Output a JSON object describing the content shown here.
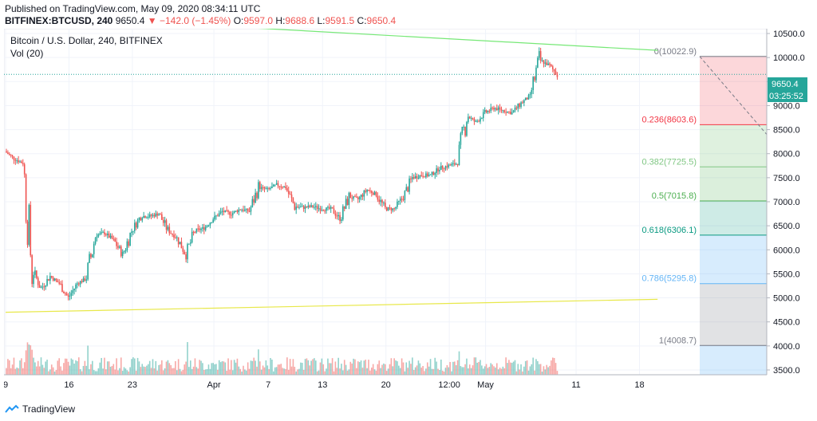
{
  "header": {
    "published": "Published on TradingView.com, May 09, 2020 08:34:11 UTC",
    "symbol": "BITFINEX:BTCUSD, 240",
    "last": "9650.4",
    "change": "▼ −142.0 (−1.45%)",
    "o_label": "O:",
    "o_value": "9597.0",
    "h_label": "H:",
    "h_value": "9688.6",
    "l_label": "L:",
    "l_value": "9591.5",
    "c_label": "C:",
    "c_value": "9650.4"
  },
  "pane": {
    "title": "Bitcoin / U.S. Dollar, 240, BITFINEX",
    "volume_label": "Vol (20)"
  },
  "price_tag": {
    "value": "9650.4",
    "countdown": "03:25:52"
  },
  "footer": {
    "brand": "TradingView"
  },
  "colors": {
    "up": "#26a69a",
    "down": "#ef5350",
    "green_trend": "#76e876",
    "yellow_trend": "#e8e84a",
    "dotted_price": "#26a69a"
  },
  "chart_data": {
    "type": "candlestick",
    "y_axis": {
      "min": 3400,
      "max": 10600,
      "ticks": [
        3500,
        4000,
        4500,
        5000,
        5500,
        6000,
        6500,
        7000,
        7500,
        8000,
        8500,
        9000,
        9500,
        10000,
        10500
      ]
    },
    "x_axis": {
      "ticks": [
        "9",
        "16",
        "23",
        "Apr",
        "7",
        "13",
        "20",
        "12:00",
        "May",
        "11",
        "18"
      ]
    },
    "last_price": 9650.4,
    "trendlines": [
      {
        "color": "green",
        "from": [
          "Mar 9",
          10900
        ],
        "to": [
          "May 20",
          10150
        ]
      },
      {
        "color": "yellow",
        "from": [
          "Mar 9",
          4700
        ],
        "to": [
          "May 20",
          4970
        ]
      }
    ],
    "fibonacci": [
      {
        "label": "0(10022.9)",
        "level": 10022.9
      },
      {
        "label": "0.236(8603.6)",
        "level": 8603.6
      },
      {
        "label": "0.382(7725.5)",
        "level": 7725.5
      },
      {
        "label": "0.5(7015.8)",
        "level": 7015.8
      },
      {
        "label": "0.618(6306.1)",
        "level": 6306.1
      },
      {
        "label": "0.786(5295.8)",
        "level": 5295.8
      },
      {
        "label": "1(4008.7)",
        "level": 4008.7
      }
    ],
    "price_path": [
      [
        "Mar 9",
        8050
      ],
      [
        "Mar 10",
        7900
      ],
      [
        "Mar 11",
        7800
      ],
      [
        "Mar 12",
        5600
      ],
      [
        "Mar 13",
        5200
      ],
      [
        "Mar 14",
        5450
      ],
      [
        "Mar 15",
        5300
      ],
      [
        "Mar 16",
        5000
      ],
      [
        "Mar 17",
        5300
      ],
      [
        "Mar 18",
        5400
      ],
      [
        "Mar 19",
        6300
      ],
      [
        "Mar 20",
        6350
      ],
      [
        "Mar 21",
        6200
      ],
      [
        "Mar 22",
        5900
      ],
      [
        "Mar 23",
        6400
      ],
      [
        "Mar 24",
        6700
      ],
      [
        "Mar 25",
        6700
      ],
      [
        "Mar 26",
        6750
      ],
      [
        "Mar 27",
        6400
      ],
      [
        "Mar 28",
        6250
      ],
      [
        "Mar 29",
        5900
      ],
      [
        "Mar 30",
        6400
      ],
      [
        "Mar 31",
        6450
      ],
      [
        "Apr 1",
        6650
      ],
      [
        "Apr 2",
        6800
      ],
      [
        "Apr 3",
        6750
      ],
      [
        "Apr 4",
        6850
      ],
      [
        "Apr 5",
        6800
      ],
      [
        "Apr 6",
        7300
      ],
      [
        "Apr 7",
        7250
      ],
      [
        "Apr 8",
        7350
      ],
      [
        "Apr 9",
        7300
      ],
      [
        "Apr 10",
        6900
      ],
      [
        "Apr 11",
        6880
      ],
      [
        "Apr 12",
        6900
      ],
      [
        "Apr 13",
        6850
      ],
      [
        "Apr 14",
        6850
      ],
      [
        "Apr 15",
        6650
      ],
      [
        "Apr 16",
        7100
      ],
      [
        "Apr 17",
        7050
      ],
      [
        "Apr 18",
        7250
      ],
      [
        "Apr 19",
        7150
      ],
      [
        "Apr 20",
        6850
      ],
      [
        "Apr 21",
        6850
      ],
      [
        "Apr 22",
        7100
      ],
      [
        "Apr 23",
        7500
      ],
      [
        "Apr 24",
        7550
      ],
      [
        "Apr 25",
        7550
      ],
      [
        "Apr 26",
        7700
      ],
      [
        "Apr 27",
        7750
      ],
      [
        "Apr 28",
        7800
      ],
      [
        "Apr 29",
        8800
      ],
      [
        "Apr 30",
        8650
      ],
      [
        "May 1",
        8850
      ],
      [
        "May 2",
        8950
      ],
      [
        "May 3",
        8900
      ],
      [
        "May 4",
        8850
      ],
      [
        "May 5",
        9050
      ],
      [
        "May 6",
        9200
      ],
      [
        "May 7",
        9950
      ],
      [
        "May 8",
        9850
      ],
      [
        "May 9",
        9650
      ]
    ]
  }
}
